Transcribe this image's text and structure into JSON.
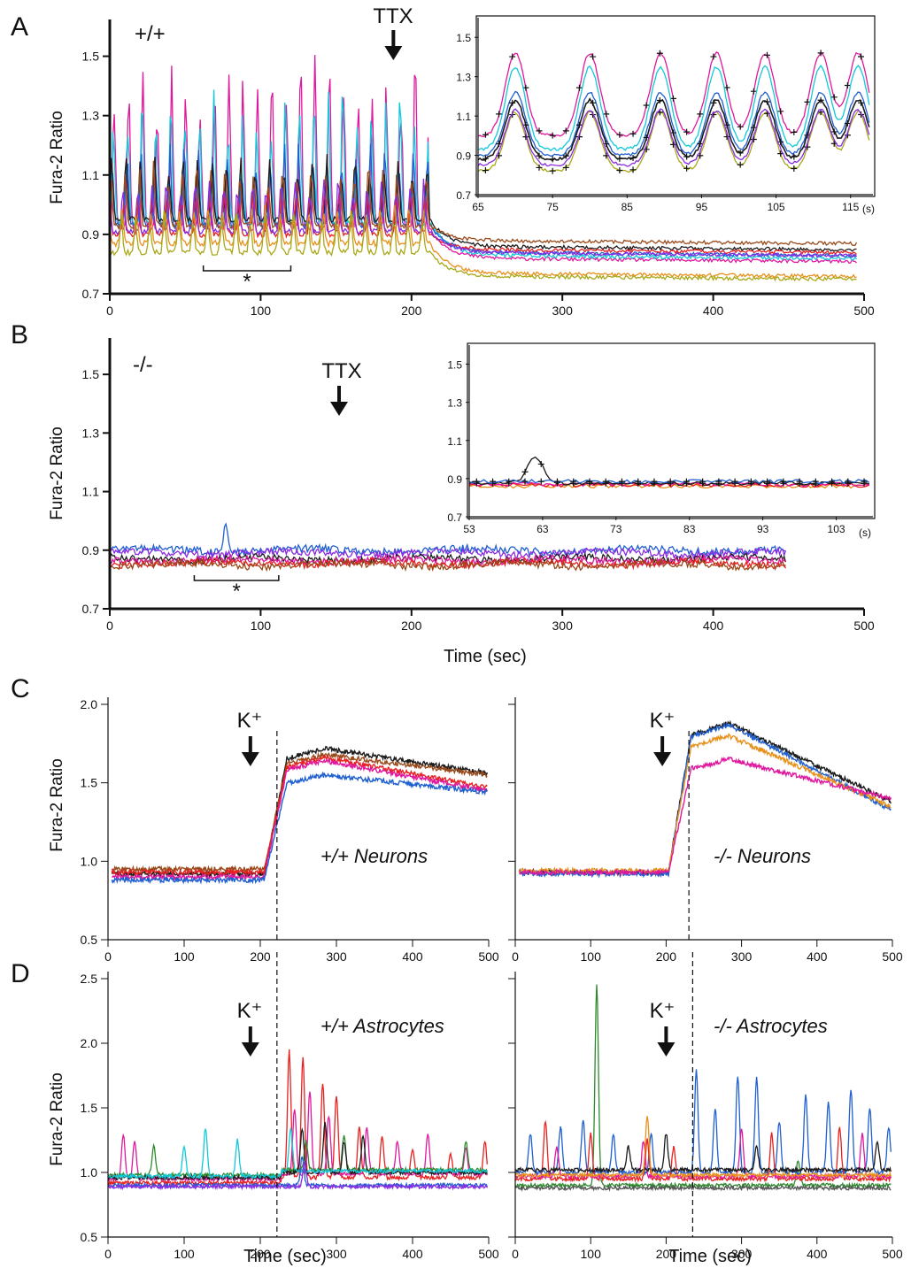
{
  "figure": {
    "panel_labels": [
      "A",
      "B",
      "C",
      "D"
    ],
    "colors": [
      "#e0189e",
      "#1f5fd0",
      "#1b1b1b",
      "#e82020",
      "#a9a818",
      "#12c8d8",
      "#8a2be2",
      "#2d8a2d",
      "#e8901a",
      "#9a4a1a"
    ]
  },
  "chart_data": [
    {
      "id": "A",
      "type": "line",
      "ylabel": "Fura-2 Ratio",
      "xlabel": "",
      "genotype": "+/+",
      "annotation": "TTX",
      "annotation_x": 188,
      "bracket_label": "*",
      "bracket_range": [
        62,
        120
      ],
      "xlim": [
        0,
        500
      ],
      "ylim": [
        0.7,
        1.6
      ],
      "xticks": [
        0,
        100,
        200,
        300,
        400,
        500
      ],
      "yticks": [
        0.7,
        0.9,
        1.1,
        1.3,
        1.5
      ],
      "series": [
        {
          "color": "#e0189e",
          "baseline": 0.92,
          "peak": 1.52,
          "post": 0.82
        },
        {
          "color": "#12c8d8",
          "baseline": 0.94,
          "peak": 1.4,
          "post": 0.83
        },
        {
          "color": "#1f5fd0",
          "baseline": 0.93,
          "peak": 1.22,
          "post": 0.84
        },
        {
          "color": "#1b1b1b",
          "baseline": 0.95,
          "peak": 1.18,
          "post": 0.86
        },
        {
          "color": "#9a4a1a",
          "baseline": 0.93,
          "peak": 1.15,
          "post": 0.88
        },
        {
          "color": "#e82020",
          "baseline": 0.9,
          "peak": 1.05,
          "post": 0.85
        },
        {
          "color": "#8a2be2",
          "baseline": 0.91,
          "peak": 1.1,
          "post": 0.84
        },
        {
          "color": "#e8901a",
          "baseline": 0.87,
          "peak": 1.0,
          "post": 0.77
        },
        {
          "color": "#a9a818",
          "baseline": 0.84,
          "peak": 0.98,
          "post": 0.76
        }
      ]
    },
    {
      "id": "A-inset",
      "type": "line",
      "xlim": [
        65,
        118
      ],
      "ylim": [
        0.7,
        1.6
      ],
      "xticks": [
        65,
        75,
        85,
        95,
        105,
        115
      ],
      "yticks": [
        0.7,
        0.9,
        1.1,
        1.3,
        1.5
      ],
      "x_unit": "(s)",
      "peak_times": [
        70,
        80,
        89.5,
        97,
        103.5,
        111,
        116
      ]
    },
    {
      "id": "B",
      "type": "line",
      "ylabel": "Fura-2 Ratio",
      "xlabel": "Time (sec)",
      "genotype": "-/-",
      "annotation": "TTX",
      "annotation_x": 152,
      "bracket_label": "*",
      "bracket_range": [
        56,
        112
      ],
      "xlim": [
        0,
        500
      ],
      "ylim": [
        0.7,
        1.6
      ],
      "xticks": [
        0,
        100,
        200,
        300,
        400,
        500
      ],
      "yticks": [
        0.7,
        0.9,
        1.1,
        1.3,
        1.5
      ],
      "series": [
        {
          "color": "#1f5fd0",
          "baseline": 0.9,
          "spike_x": 77,
          "spike_y": 0.99
        },
        {
          "color": "#8a2be2",
          "baseline": 0.89
        },
        {
          "color": "#1b1b1b",
          "baseline": 0.87
        },
        {
          "color": "#e0189e",
          "baseline": 0.865
        },
        {
          "color": "#e82020",
          "baseline": 0.855
        },
        {
          "color": "#9a4a1a",
          "baseline": 0.85
        }
      ]
    },
    {
      "id": "B-inset",
      "type": "line",
      "xlim": [
        53,
        108
      ],
      "ylim": [
        0.7,
        1.6
      ],
      "xticks": [
        53,
        63,
        73,
        83,
        93,
        103
      ],
      "yticks": [
        0.7,
        0.9,
        1.1,
        1.3,
        1.5
      ],
      "x_unit": "(s)"
    },
    {
      "id": "C-left",
      "type": "line",
      "ylabel": "Fura-2 Ratio",
      "xlabel": "",
      "condition": "+/+ Neurons",
      "stim": "K⁺",
      "stim_x": 187,
      "xlim": [
        0,
        500
      ],
      "ylim": [
        0.5,
        2.0
      ],
      "xticks": [
        0,
        100,
        200,
        300,
        400,
        500
      ],
      "yticks": [
        0.5,
        1.0,
        1.5,
        2.0
      ],
      "ytick_labels": [
        "0.5",
        "1.0",
        "1.5",
        "2.0"
      ],
      "series": [
        {
          "color": "#1b1b1b",
          "baseline": 0.92,
          "peak": 1.72,
          "end": 1.56
        },
        {
          "color": "#9a4a1a",
          "baseline": 0.95,
          "peak": 1.68,
          "end": 1.55
        },
        {
          "color": "#e82020",
          "baseline": 0.93,
          "peak": 1.66,
          "end": 1.47
        },
        {
          "color": "#e0189e",
          "baseline": 0.9,
          "peak": 1.64,
          "end": 1.45
        },
        {
          "color": "#1f5fd0",
          "baseline": 0.88,
          "peak": 1.55,
          "end": 1.44
        }
      ]
    },
    {
      "id": "C-right",
      "type": "line",
      "condition": "-/- Neurons",
      "stim": "K⁺",
      "stim_x": 195,
      "xlim": [
        0,
        500
      ],
      "ylim": [
        0.5,
        2.0
      ],
      "xticks": [
        0,
        100,
        200,
        300,
        400,
        500
      ],
      "series": [
        {
          "color": "#1b1b1b",
          "baseline": 0.93,
          "peak": 1.88,
          "end": 1.38
        },
        {
          "color": "#1f5fd0",
          "baseline": 0.92,
          "peak": 1.87,
          "end": 1.33
        },
        {
          "color": "#e8901a",
          "baseline": 0.94,
          "peak": 1.8,
          "end": 1.35
        },
        {
          "color": "#e0189e",
          "baseline": 0.93,
          "peak": 1.65,
          "end": 1.4
        }
      ]
    },
    {
      "id": "D-left",
      "type": "line",
      "ylabel": "Fura-2 Ratio",
      "xlabel": "Time (sec)",
      "condition": "+/+ Astrocytes",
      "stim": "K⁺",
      "stim_x": 187,
      "xlim": [
        0,
        500
      ],
      "ylim": [
        0.5,
        2.5
      ],
      "xticks": [
        0,
        100,
        200,
        300,
        400,
        500
      ],
      "yticks": [
        0.5,
        1.0,
        1.5,
        2.0,
        2.5
      ],
      "ytick_labels": [
        "0.5",
        "1.0",
        "1.5",
        "2.0",
        "2.5"
      ],
      "series": [
        {
          "color": "#e82020",
          "baseline": 0.92,
          "peaks": [
            [
              238,
              1.9
            ],
            [
              256,
              1.85
            ],
            [
              282,
              1.65
            ],
            [
              300,
              1.55
            ],
            [
              330,
              1.3
            ],
            [
              360,
              1.25
            ],
            [
              400,
              1.15
            ],
            [
              450,
              1.1
            ],
            [
              495,
              1.2
            ]
          ]
        },
        {
          "color": "#e0189e",
          "baseline": 0.95,
          "peaks": [
            [
              20,
              1.3
            ],
            [
              35,
              1.25
            ],
            [
              245,
              1.45
            ],
            [
              265,
              1.6
            ],
            [
              290,
              1.4
            ],
            [
              340,
              1.3
            ],
            [
              380,
              1.2
            ],
            [
              420,
              1.25
            ],
            [
              470,
              1.15
            ]
          ]
        },
        {
          "color": "#2d8a2d",
          "baseline": 0.98,
          "peaks": [
            [
              60,
              1.2
            ],
            [
              260,
              1.2
            ],
            [
              310,
              1.25
            ],
            [
              470,
              1.2
            ]
          ]
        },
        {
          "color": "#1b1b1b",
          "baseline": 0.96,
          "peaks": [
            [
              255,
              1.3
            ],
            [
              285,
              1.35
            ],
            [
              310,
              1.2
            ],
            [
              335,
              1.25
            ]
          ]
        },
        {
          "color": "#12c8d8",
          "baseline": 0.97,
          "peaks": [
            [
              100,
              1.2
            ],
            [
              128,
              1.35
            ],
            [
              170,
              1.25
            ],
            [
              240,
              1.3
            ]
          ]
        },
        {
          "color": "#1f5fd0",
          "baseline": 0.9,
          "peaks": [
            [
              255,
              1.12
            ]
          ]
        },
        {
          "color": "#8a2be2",
          "baseline": 0.89,
          "peaks": [
            [
              258,
              1.08
            ]
          ]
        }
      ]
    },
    {
      "id": "D-right",
      "type": "line",
      "xlabel": "Time (sec)",
      "condition": "-/- Astrocytes",
      "stim": "K⁺",
      "stim_x": 200,
      "xlim": [
        0,
        500
      ],
      "ylim": [
        0.5,
        2.5
      ],
      "xticks": [
        0,
        100,
        200,
        300,
        400,
        500
      ],
      "series": [
        {
          "color": "#2d8a2d",
          "baseline": 0.9,
          "peaks": [
            [
              108,
              2.45
            ],
            [
              375,
              1.1
            ]
          ]
        },
        {
          "color": "#1f5fd0",
          "baseline": 1.0,
          "peaks": [
            [
              20,
              1.3
            ],
            [
              60,
              1.35
            ],
            [
              90,
              1.4
            ],
            [
              130,
              1.3
            ],
            [
              180,
              1.3
            ],
            [
              240,
              1.8
            ],
            [
              265,
              1.5
            ],
            [
              295,
              1.75
            ],
            [
              320,
              1.75
            ],
            [
              350,
              1.4
            ],
            [
              385,
              1.6
            ],
            [
              415,
              1.55
            ],
            [
              445,
              1.65
            ],
            [
              470,
              1.5
            ],
            [
              495,
              1.35
            ]
          ]
        },
        {
          "color": "#e82020",
          "baseline": 0.95,
          "peaks": [
            [
              40,
              1.4
            ],
            [
              100,
              1.3
            ],
            [
              175,
              1.25
            ],
            [
              210,
              1.2
            ],
            [
              340,
              1.3
            ],
            [
              430,
              1.35
            ]
          ]
        },
        {
          "color": "#e0189e",
          "baseline": 0.97,
          "peaks": [
            [
              55,
              1.2
            ],
            [
              170,
              1.25
            ],
            [
              300,
              1.35
            ],
            [
              460,
              1.3
            ]
          ]
        },
        {
          "color": "#1b1b1b",
          "baseline": 1.02,
          "peaks": [
            [
              150,
              1.2
            ],
            [
              200,
              1.3
            ],
            [
              320,
              1.2
            ],
            [
              480,
              1.25
            ]
          ]
        },
        {
          "color": "#e8901a",
          "baseline": 0.98,
          "peaks": [
            [
              175,
              1.45
            ]
          ]
        },
        {
          "color": "#555555",
          "baseline": 0.88,
          "peaks": []
        }
      ]
    }
  ]
}
